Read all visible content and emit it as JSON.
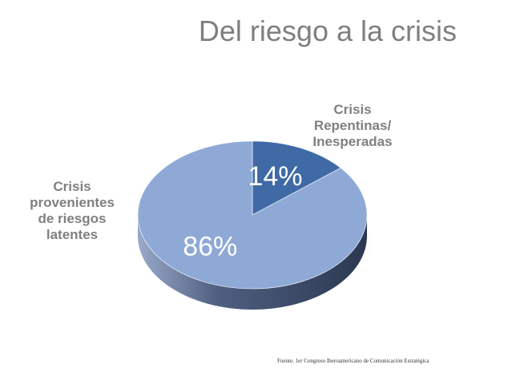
{
  "title": "Del riesgo a la crisis",
  "chart_data": {
    "type": "pie",
    "slices": [
      {
        "name": "Crisis Repentinas/ Inesperadas",
        "value": 14,
        "label": "14%",
        "color": "#3f6aa6"
      },
      {
        "name": "Crisis provenientes de riesgos latentes",
        "value": 86,
        "label": "86%",
        "color": "#8fa9d6"
      }
    ]
  },
  "labels": {
    "sudden_lines": [
      "Crisis",
      "Repentinas/",
      "Inesperadas"
    ],
    "latent_lines": [
      "Crisis",
      "provenientes",
      "de riesgos",
      "latentes"
    ]
  },
  "source": "Fuente. 1er Congreso Iberoamericano de Comunicación Estratégica"
}
